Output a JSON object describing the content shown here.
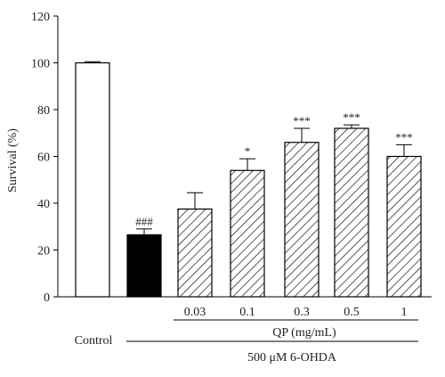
{
  "chart_data": {
    "type": "bar",
    "ylabel": "Survival (%)",
    "ylim": [
      0,
      120
    ],
    "yticks": [
      0,
      20,
      40,
      60,
      80,
      100,
      120
    ],
    "categories": [
      "Control",
      "",
      "0.03",
      "0.1",
      "0.3",
      "0.5",
      "1"
    ],
    "values": [
      100,
      26.5,
      37.5,
      54,
      66,
      72,
      60
    ],
    "errors": [
      0.5,
      2.5,
      7,
      5,
      6,
      1.5,
      5
    ],
    "fills": [
      "white",
      "black",
      "hatch",
      "hatch",
      "hatch",
      "hatch",
      "hatch"
    ],
    "significance": [
      "",
      "###",
      "",
      "*",
      "***",
      "***",
      "***"
    ],
    "group_labels": {
      "control": "Control",
      "treatment": "QP (mg/mL)",
      "toxin": "500 μM 6-OHDA"
    }
  }
}
